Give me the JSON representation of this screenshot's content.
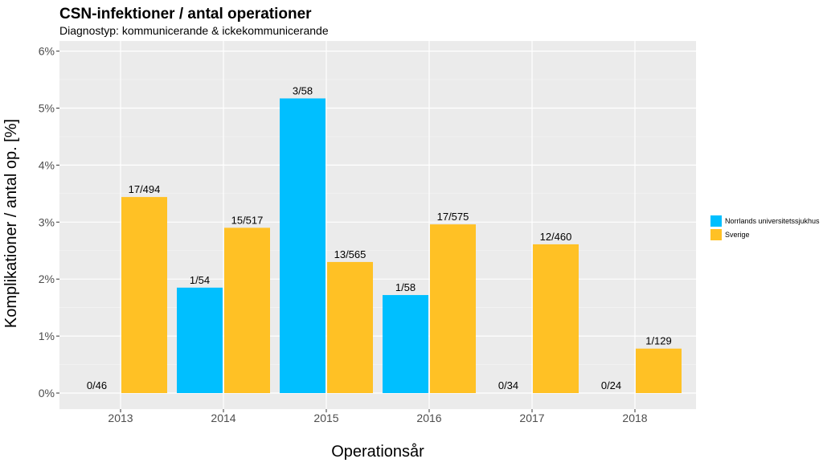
{
  "chart_data": {
    "type": "bar",
    "title": "CSN-infektioner / antal operationer",
    "subtitle": "Diagnostyp: kommunicerande & ickekommunicerande",
    "xlabel": "Operationsår",
    "ylabel": "Komplikationer / antal op. [%]",
    "categories": [
      "2013",
      "2014",
      "2015",
      "2016",
      "2017",
      "2018"
    ],
    "yticks": [
      "0%",
      "1%",
      "2%",
      "3%",
      "4%",
      "5%",
      "6%"
    ],
    "ylim": [
      0,
      6.2
    ],
    "grid": true,
    "legend_position": "right",
    "series": [
      {
        "name": "Norrlands universitetssjukhus",
        "color": "#00BFFF",
        "values": [
          0,
          1.85,
          5.17,
          1.72,
          0,
          0
        ],
        "labels": [
          "0/46",
          "1/54",
          "3/58",
          "1/58",
          "0/34",
          "0/24"
        ]
      },
      {
        "name": "Sverige",
        "color": "#FFC125",
        "values": [
          3.44,
          2.9,
          2.3,
          2.96,
          2.61,
          0.78
        ],
        "labels": [
          "17/494",
          "15/517",
          "13/565",
          "17/575",
          "12/460",
          "1/129"
        ]
      }
    ]
  }
}
